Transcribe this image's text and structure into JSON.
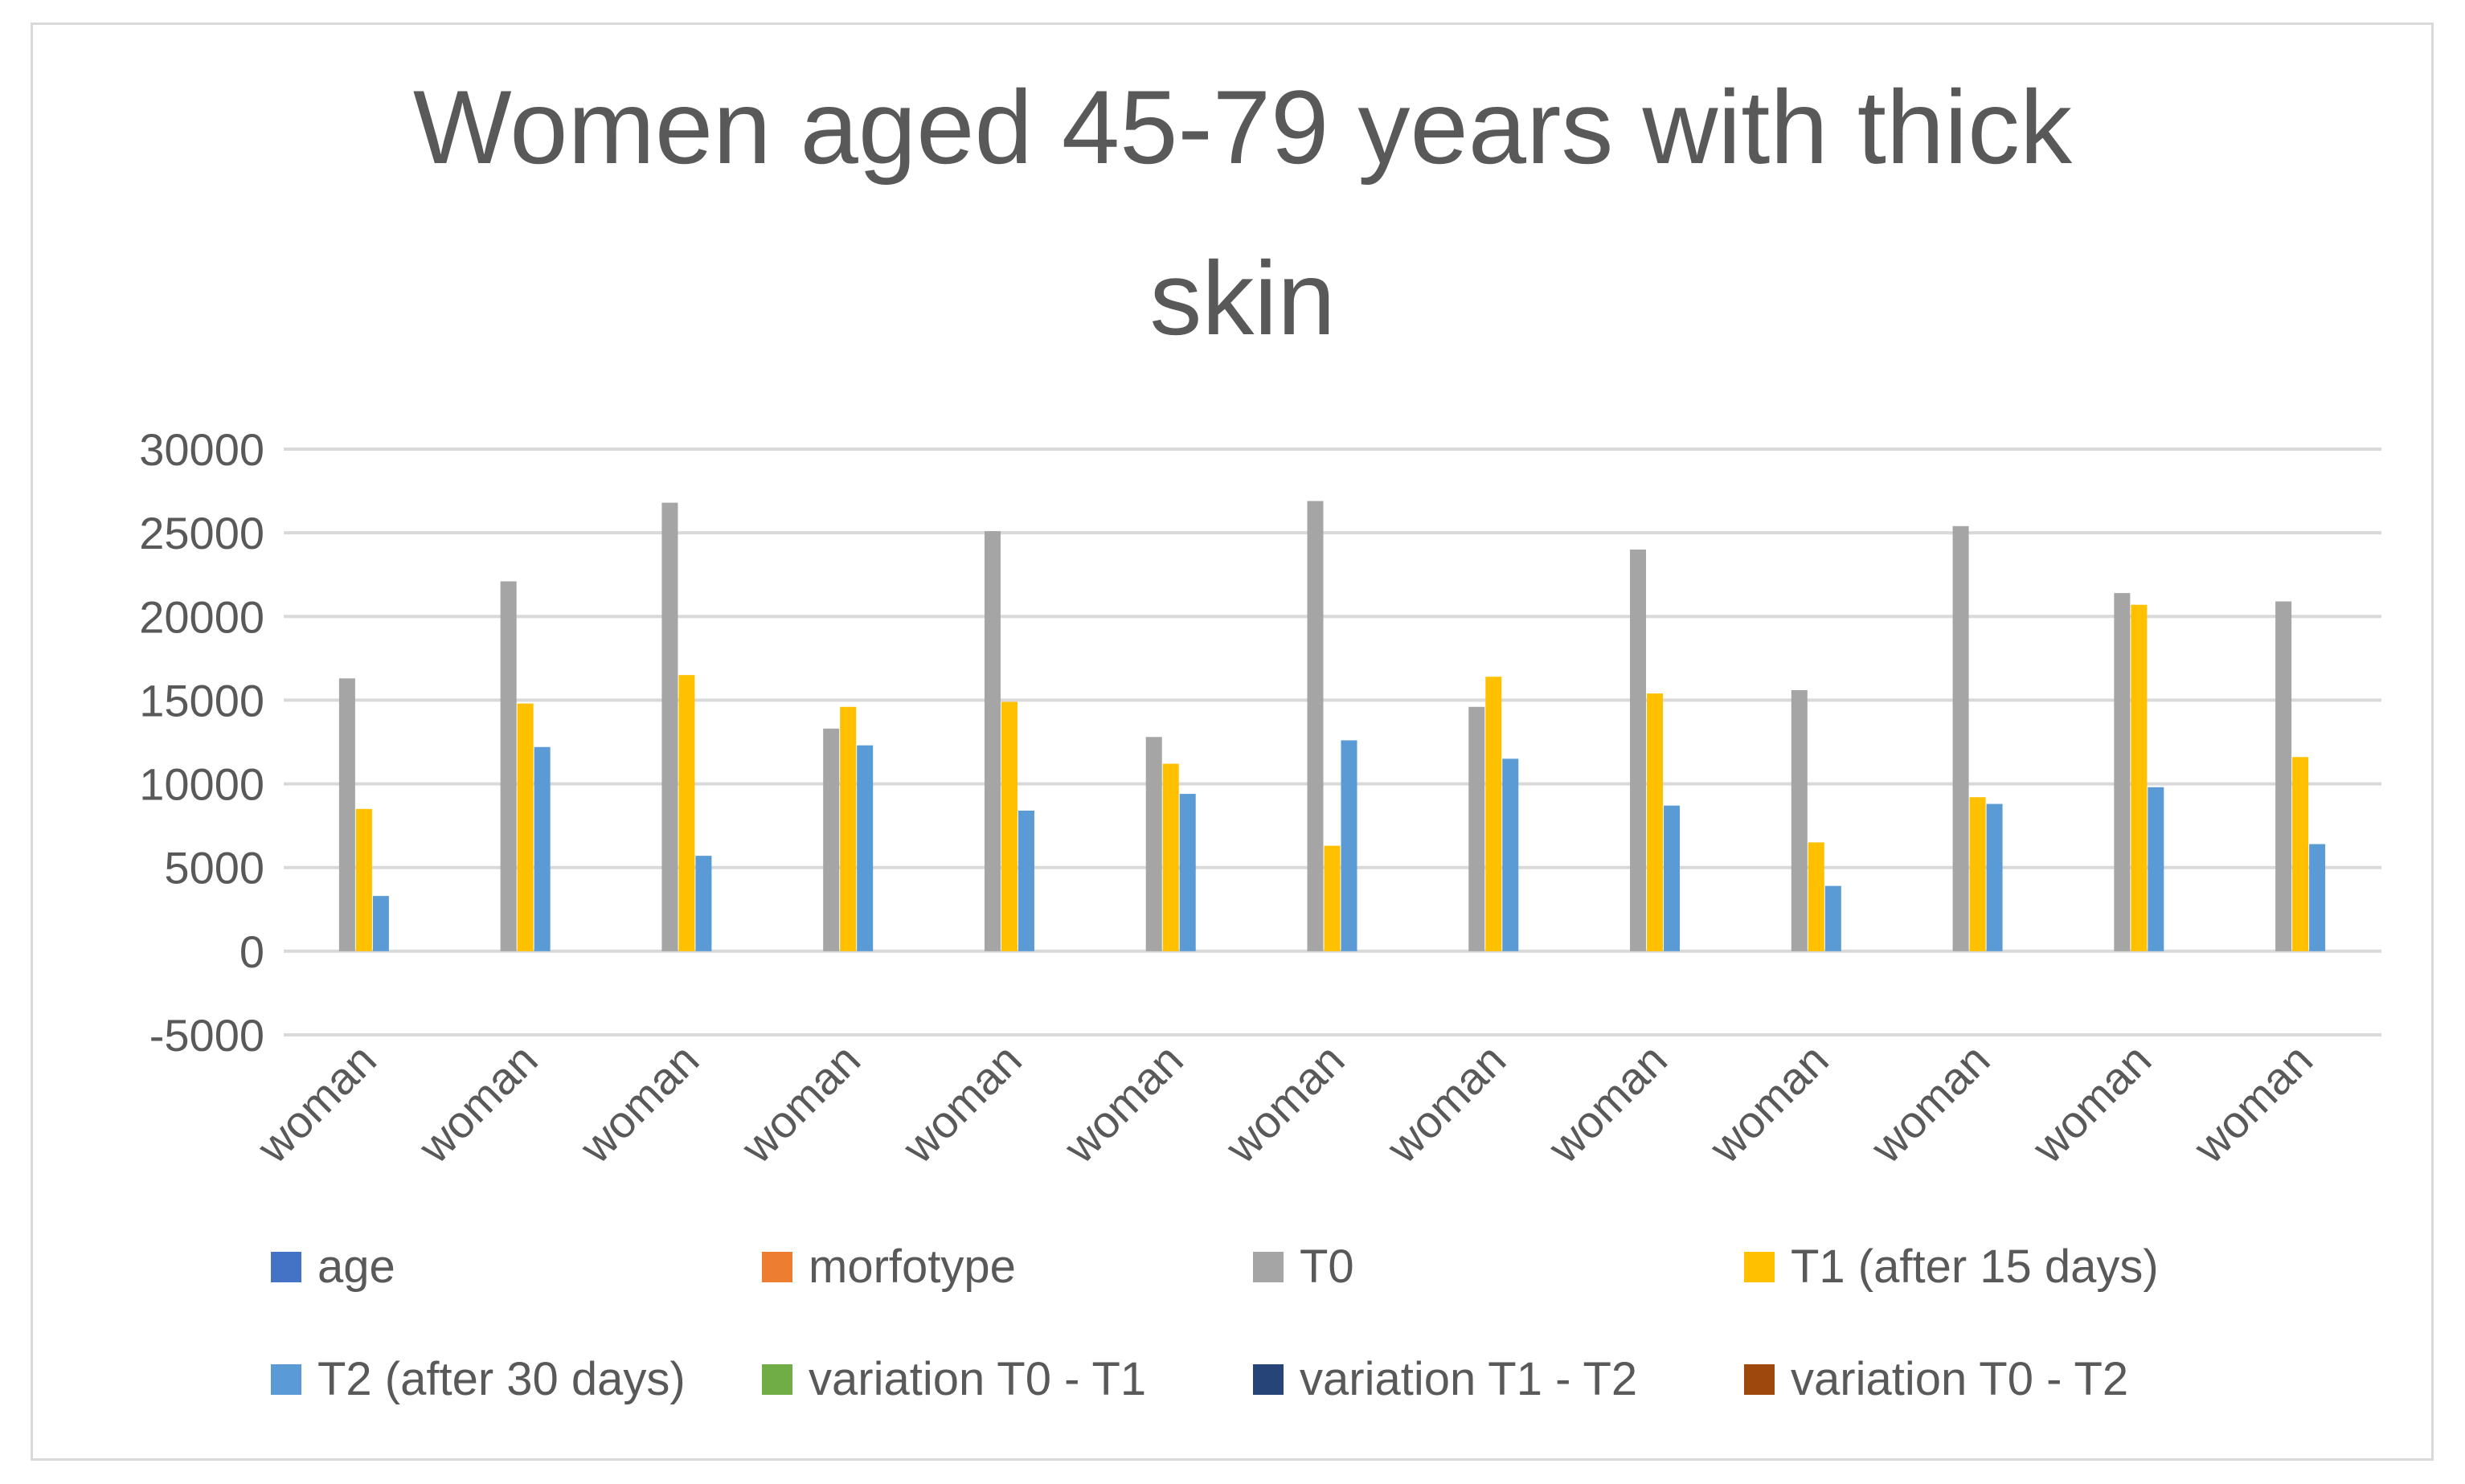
{
  "chart_data": {
    "type": "bar",
    "title": "Women aged 45-79 years with thick skin",
    "title_lines": [
      "Women aged 45-79 years with thick",
      "skin"
    ],
    "xlabel": "",
    "ylabel": "",
    "ylim": [
      -5000,
      30000
    ],
    "yticks": [
      30000,
      25000,
      20000,
      15000,
      10000,
      5000,
      0,
      -5000
    ],
    "grid": true,
    "legend_position": "bottom",
    "categories": [
      "woman",
      "woman",
      "woman",
      "woman",
      "woman",
      "woman",
      "woman",
      "woman",
      "woman",
      "woman",
      "woman",
      "woman",
      "woman"
    ],
    "series": [
      {
        "name": "age",
        "color": "#4472c4",
        "values": [
          null,
          null,
          null,
          null,
          null,
          null,
          null,
          null,
          null,
          null,
          null,
          null,
          null
        ]
      },
      {
        "name": "morfotype",
        "color": "#ed7d31",
        "values": [
          null,
          null,
          null,
          null,
          null,
          null,
          null,
          null,
          null,
          null,
          null,
          null,
          null
        ]
      },
      {
        "name": "T0",
        "color": "#a5a5a5",
        "values": [
          16300,
          22100,
          26800,
          13300,
          25100,
          12800,
          26900,
          14600,
          24000,
          15600,
          25400,
          21400,
          20900
        ]
      },
      {
        "name": "T1 (after 15 days)",
        "color": "#ffc000",
        "values": [
          8500,
          14800,
          16500,
          14600,
          14900,
          11200,
          6300,
          16400,
          15400,
          6500,
          9200,
          20700,
          11600
        ]
      },
      {
        "name": "T2 (after 30 days)",
        "color": "#5b9bd5",
        "values": [
          3300,
          12200,
          5700,
          12300,
          8400,
          9400,
          12600,
          11500,
          8700,
          3900,
          8800,
          9800,
          6400
        ]
      },
      {
        "name": "variation T0 - T1",
        "color": "#70ad47",
        "values": [
          null,
          null,
          null,
          null,
          null,
          null,
          null,
          null,
          null,
          null,
          null,
          null,
          null
        ]
      },
      {
        "name": "variation T1 - T2",
        "color": "#264478",
        "values": [
          null,
          null,
          null,
          null,
          null,
          null,
          null,
          null,
          null,
          null,
          null,
          null,
          null
        ]
      },
      {
        "name": "variation T0 - T2",
        "color": "#9e480e",
        "values": [
          null,
          null,
          null,
          null,
          null,
          null,
          null,
          null,
          null,
          null,
          null,
          null,
          null
        ]
      }
    ]
  },
  "colors": {
    "grid": "#d9d9d9",
    "text": "#595959",
    "border": "#d9d9d9"
  }
}
